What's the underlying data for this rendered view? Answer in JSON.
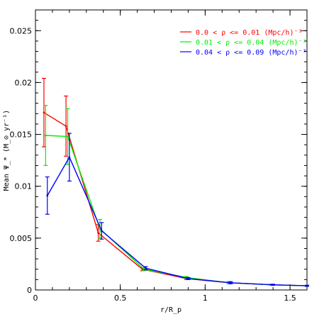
{
  "chart_data": {
    "type": "line",
    "title": "",
    "xlabel": "r/R_p",
    "ylabel": "Mean Ψ_* (M_⊙ yr⁻¹)",
    "xlim": [
      0,
      1.6
    ],
    "ylim": [
      0,
      0.027
    ],
    "xticks": [
      0,
      0.5,
      1,
      1.5
    ],
    "xtick_labels": [
      "0",
      "0.5",
      "1",
      "1.5"
    ],
    "yticks": [
      0,
      0.005,
      0.01,
      0.015,
      0.02,
      0.025
    ],
    "ytick_labels": [
      "0",
      "0.005",
      "0.01",
      "0.015",
      "0.02",
      "0.025"
    ],
    "grid": false,
    "legend_position": "top-right",
    "series": [
      {
        "name": "0.0 < ρ <= 0.01 (Mpc/h)⁻³",
        "color": "#ff0000",
        "x": [
          0.05,
          0.18,
          0.37,
          0.63,
          0.89,
          1.14,
          1.39,
          1.6
        ],
        "y": [
          0.0171,
          0.0158,
          0.0055,
          0.002,
          0.0011,
          0.0007,
          0.0005,
          0.0004
        ],
        "err": [
          0.0033,
          0.0029,
          0.0008,
          0.00015,
          0.0001,
          0.0001,
          5e-05,
          5e-05
        ]
      },
      {
        "name": "0.01 < ρ <= 0.04 (Mpc/h)⁻³",
        "color": "#00ee00",
        "x": [
          0.06,
          0.19,
          0.38,
          0.64,
          0.89,
          1.14,
          1.39,
          1.6
        ],
        "y": [
          0.0149,
          0.0148,
          0.0059,
          0.002,
          0.0012,
          0.0007,
          0.0005,
          0.0004
        ],
        "err": [
          0.0029,
          0.0027,
          0.0009,
          0.00015,
          0.0001,
          0.0001,
          5e-05,
          5e-05
        ]
      },
      {
        "name": "0.04 < ρ <= 0.09 (Mpc/h)⁻³",
        "color": "#0000ff",
        "x": [
          0.07,
          0.2,
          0.39,
          0.65,
          0.9,
          1.15,
          1.4,
          1.6
        ],
        "y": [
          0.0091,
          0.0128,
          0.0057,
          0.0021,
          0.0011,
          0.0007,
          0.0005,
          0.0004
        ],
        "err": [
          0.0018,
          0.0023,
          0.0008,
          0.00015,
          0.0001,
          0.0001,
          5e-05,
          5e-05
        ]
      }
    ]
  }
}
